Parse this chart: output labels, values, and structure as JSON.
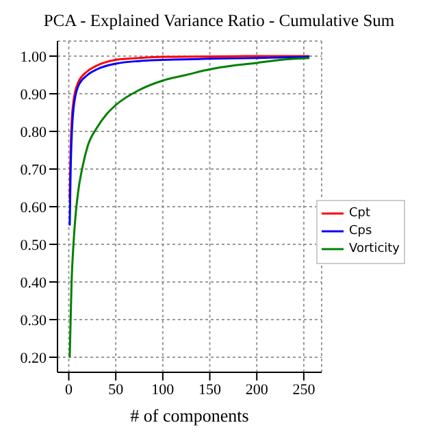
{
  "chart_data": {
    "type": "line",
    "title": "PCA - Explained Variance Ratio - Cumulative Sum",
    "xlabel": "# of components",
    "xlim": [
      -12,
      269
    ],
    "ylim": [
      0.16,
      1.04
    ],
    "xticks": [
      0,
      50,
      100,
      150,
      200,
      250
    ],
    "yticks": [
      {
        "value": 0.2,
        "label": "0.20"
      },
      {
        "value": 0.3,
        "label": "0.30"
      },
      {
        "value": 0.4,
        "label": "0.40"
      },
      {
        "value": 0.5,
        "label": "0.50"
      },
      {
        "value": 0.6,
        "label": "0.60"
      },
      {
        "value": 0.7,
        "label": "0.70"
      },
      {
        "value": 0.8,
        "label": "0.80"
      },
      {
        "value": 0.9,
        "label": "0.90"
      },
      {
        "value": 1.0,
        "label": "1.00"
      }
    ],
    "grid": true,
    "legend": "right",
    "marker": "none",
    "line_style": "solid",
    "series": [
      {
        "name": "Cpt",
        "color": "#ff0000",
        "x": [
          1,
          2,
          3,
          5,
          10,
          20,
          30,
          50,
          75,
          100,
          150,
          200,
          256
        ],
        "values": [
          0.62,
          0.75,
          0.82,
          0.88,
          0.93,
          0.96,
          0.975,
          0.99,
          0.995,
          0.998,
          0.999,
          1.0,
          1.0
        ]
      },
      {
        "name": "Cps",
        "color": "#0000ff",
        "x": [
          1,
          2,
          3,
          5,
          10,
          20,
          30,
          50,
          75,
          100,
          150,
          200,
          256
        ],
        "values": [
          0.55,
          0.7,
          0.78,
          0.86,
          0.92,
          0.95,
          0.965,
          0.98,
          0.987,
          0.99,
          0.993,
          0.995,
          0.998
        ]
      },
      {
        "name": "Vorticity",
        "color": "#008000",
        "x": [
          1,
          3,
          5,
          7,
          10,
          15,
          20,
          30,
          40,
          50,
          75,
          100,
          125,
          150,
          175,
          200,
          225,
          256
        ],
        "values": [
          0.2,
          0.4,
          0.5,
          0.57,
          0.64,
          0.71,
          0.76,
          0.81,
          0.845,
          0.87,
          0.91,
          0.935,
          0.95,
          0.965,
          0.975,
          0.982,
          0.99,
          0.995
        ]
      }
    ]
  }
}
